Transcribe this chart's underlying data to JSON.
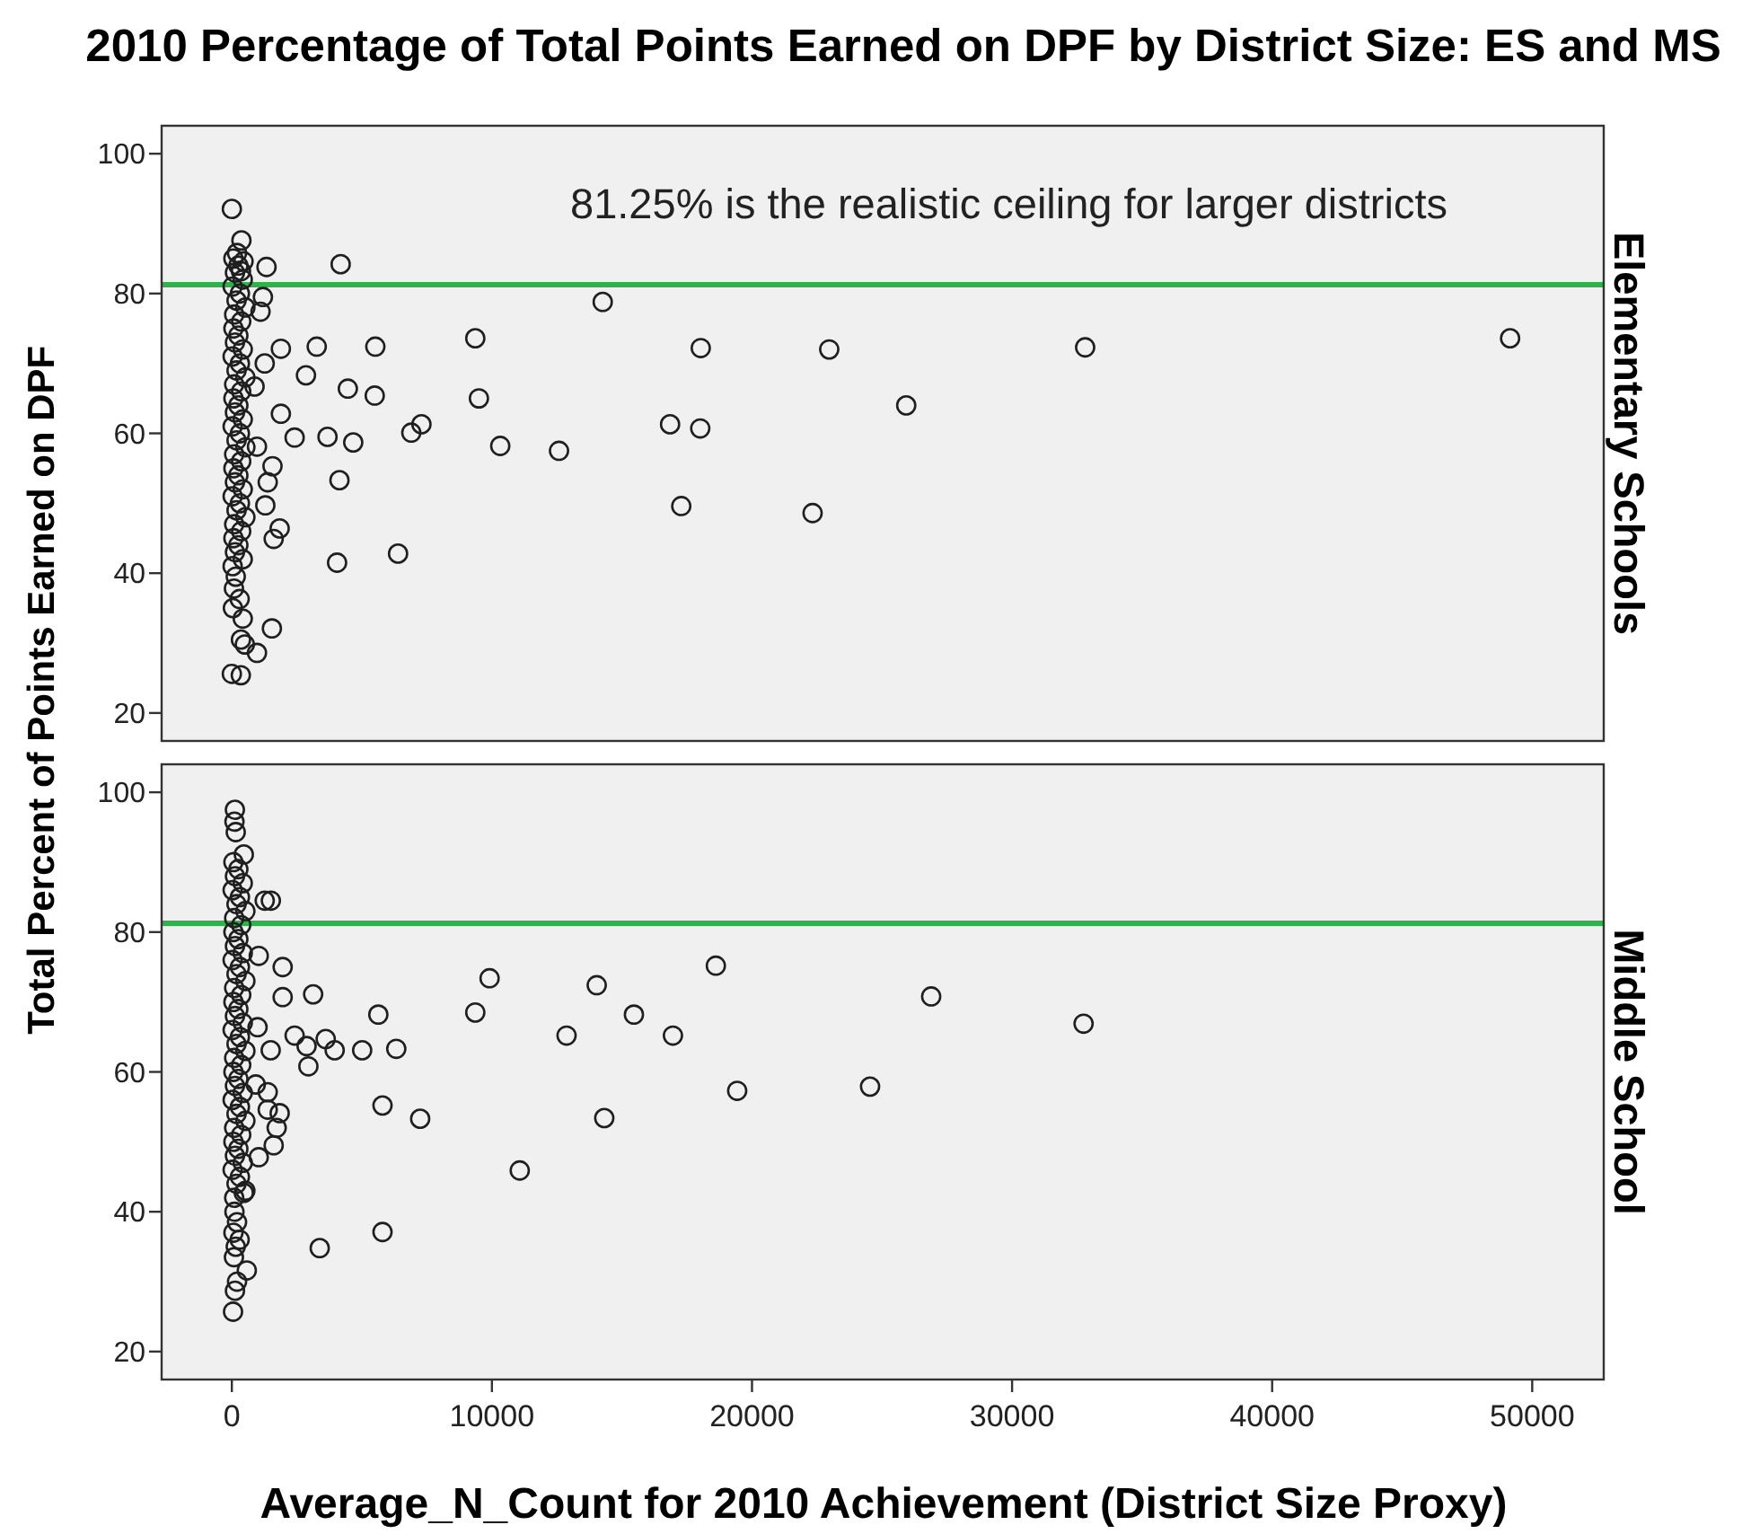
{
  "chart_data": [
    {
      "type": "scatter",
      "title": "2010 Percentage of Total Points Earned on DPF by District Size: ES and MS",
      "ylabel": "Total Percent of Points Earned on DPF",
      "y2label": "Elementary Schools",
      "xlim": [
        -2700,
        52750
      ],
      "ylim": [
        16,
        104
      ],
      "yticks": [
        20,
        40,
        60,
        80,
        100
      ],
      "tick_labels": "y",
      "marker": "circle",
      "ref_lines": [
        {
          "axis": "y",
          "value": 81.25,
          "label": "81.25% is the realistic ceiling for larger districts",
          "color": "#2eb34a"
        }
      ],
      "series": [
        {
          "color": "#1f1f1f",
          "x": [
            60,
            250,
            120,
            420,
            30,
            310,
            180,
            520,
            90,
            360,
            60,
            250,
            120,
            420,
            30,
            310,
            180,
            520,
            90,
            360,
            60,
            250,
            120,
            420,
            30,
            310,
            180,
            520,
            90,
            360,
            60,
            250,
            120,
            420,
            30,
            310,
            180,
            520,
            90,
            360,
            60,
            250,
            120,
            420,
            30,
            200,
            450,
            350,
            150,
            80,
            300,
            40,
            420,
            350,
            500,
            0,
            368,
            1333,
            4184,
            1195,
            1103,
            1885,
            3264,
            5517,
            1264,
            2850,
            4460,
            5494,
            874,
            1885,
            2414,
            3678,
            4667,
            966,
            1563,
            1379,
            4138,
            1287,
            1839,
            1609,
            4046,
            6391,
            1540,
            966,
            0,
            345,
            6900,
            7290,
            14260,
            9360,
            18030,
            22970,
            32810,
            49150,
            9500,
            25930,
            10320,
            12580,
            16850,
            18010,
            17280,
            22330
          ],
          "values": [
            85,
            84,
            83,
            82,
            81,
            80,
            79,
            78,
            77,
            76,
            75,
            74,
            73,
            72,
            71,
            70,
            69,
            68,
            67,
            66,
            65,
            64,
            63,
            62,
            61,
            60,
            59,
            58,
            57,
            56,
            55,
            54,
            53,
            52,
            51,
            50,
            49,
            48,
            47,
            46,
            45,
            44,
            43,
            42,
            41,
            85.8,
            84.6,
            83.2,
            39.5,
            37.8,
            36.3,
            35,
            33.5,
            30.5,
            29.8,
            92.1,
            87.6,
            83.8,
            84.2,
            79.5,
            77.4,
            72.1,
            72.4,
            72.4,
            70,
            68.3,
            66.4,
            65.4,
            66.7,
            62.8,
            59.4,
            59.5,
            58.7,
            58.1,
            55.3,
            53,
            53.3,
            49.7,
            46.4,
            44.9,
            41.5,
            42.8,
            32.1,
            28.6,
            25.6,
            25.4,
            60.1,
            61.3,
            78.8,
            73.6,
            72.2,
            72,
            72.3,
            73.6,
            65,
            64,
            58.2,
            57.5,
            61.3,
            60.7,
            49.6,
            48.6
          ]
        }
      ]
    },
    {
      "type": "scatter",
      "xlabel": "Average_N_Count for 2010 Achievement (District Size Proxy)",
      "y2label": "Middle School",
      "xlim": [
        -2700,
        52750
      ],
      "xticks": [
        0,
        10000,
        20000,
        30000,
        40000,
        50000
      ],
      "ylim": [
        16,
        104
      ],
      "yticks": [
        20,
        40,
        60,
        80,
        100
      ],
      "marker": "circle",
      "ref_lines": [
        {
          "axis": "y",
          "value": 81.25,
          "color": "#2eb34a"
        }
      ],
      "series": [
        {
          "color": "#1f1f1f",
          "x": [
            60,
            250,
            120,
            420,
            30,
            310,
            180,
            520,
            90,
            360,
            60,
            250,
            120,
            420,
            30,
            310,
            180,
            520,
            90,
            360,
            60,
            250,
            120,
            420,
            30,
            310,
            180,
            520,
            90,
            360,
            60,
            250,
            120,
            420,
            30,
            310,
            180,
            520,
            90,
            360,
            60,
            250,
            120,
            420,
            30,
            310,
            180,
            520,
            90,
            100,
            200,
            60,
            300,
            150,
            80,
            200,
            117,
            100,
            150,
            460,
            1264,
            1500,
            1034,
            1954,
            3126,
            1954,
            5632,
            989,
            2414,
            2874,
            3609,
            1494,
            3954,
            5011,
            6322,
            2943,
            5793,
            7241,
            1379,
            920,
            1839,
            1379,
            1724,
            1609,
            1034,
            460,
            5793,
            3379,
            575,
            46,
            120,
            9910,
            9360,
            14030,
            18610,
            15460,
            12870,
            16960,
            26890,
            32750,
            19430,
            24540,
            14320,
            11070
          ],
          "values": [
            90,
            89,
            88,
            87,
            86,
            85,
            84,
            83,
            82,
            81,
            80,
            79,
            78,
            77,
            76,
            75,
            74,
            73,
            72,
            71,
            70,
            69,
            68,
            67,
            66,
            65,
            64,
            63,
            62,
            61,
            60,
            59,
            58,
            57,
            56,
            55,
            54,
            53,
            52,
            51,
            50,
            49,
            48,
            47,
            46,
            45,
            44,
            43,
            42,
            40,
            38.5,
            37,
            36,
            35,
            33.5,
            30,
            97.5,
            95.8,
            94.3,
            91.1,
            84.5,
            84.5,
            76.6,
            75,
            71.1,
            70.7,
            68.2,
            66.4,
            65.2,
            63.7,
            64.7,
            63.1,
            63.1,
            63.1,
            63.3,
            60.8,
            55.2,
            53.3,
            57.1,
            58.2,
            54.1,
            54.6,
            52,
            49.5,
            47.8,
            42.7,
            37.1,
            34.8,
            31.6,
            25.7,
            28.7,
            73.4,
            68.5,
            72.4,
            75.2,
            68.2,
            65.2,
            65.2,
            70.8,
            66.9,
            57.3,
            57.9,
            53.4,
            45.9
          ]
        }
      ]
    }
  ]
}
